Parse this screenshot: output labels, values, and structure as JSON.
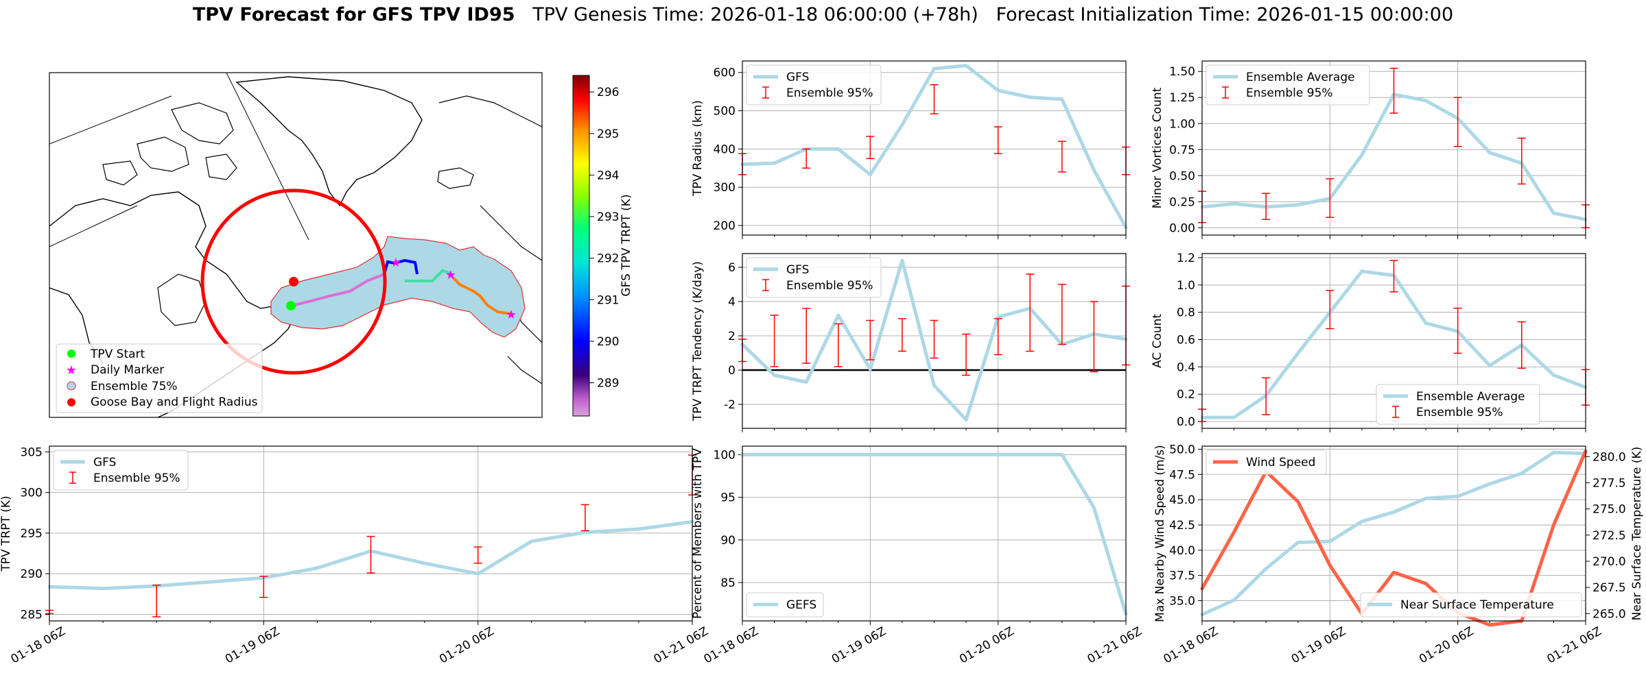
{
  "title": {
    "main": "TPV Forecast for GFS TPV ID95",
    "genesis": "TPV Genesis Time: 2026-01-18 06:00:00 (+78h)",
    "init": "Forecast Initialization Time: 2026-01-15 00:00:00"
  },
  "colors": {
    "model_line": "#add8e6",
    "errorbar": "#ff0000",
    "wind": "#ff6347",
    "temp_axis": "#4169e1"
  },
  "map": {
    "colorbar_label": "GFS TPV TRPT (K)",
    "colorbar_ticks": [
      289,
      290,
      291,
      292,
      293,
      294,
      295,
      296
    ],
    "colorbar_range": [
      288.2,
      296.4
    ],
    "legend": [
      "TPV Start",
      "Daily Marker",
      "Ensemble 75%",
      "Goose Bay and Flight Radius"
    ]
  },
  "x_time_labels": [
    "01-18 06Z",
    "01-19 06Z",
    "01-20 06Z",
    "01-21 06Z"
  ],
  "chart_data": [
    {
      "id": "radius",
      "type": "line",
      "ylabel": "TPV Radius (km)",
      "ylim": [
        175,
        630
      ],
      "yticks": [
        200,
        300,
        400,
        500,
        600
      ],
      "legend": [
        "GFS",
        "Ensemble 95%"
      ],
      "legend_loc": "upper left",
      "x": [
        0,
        6,
        12,
        18,
        24,
        30,
        36,
        42,
        48,
        54,
        60,
        66,
        72
      ],
      "gfs": [
        360,
        363,
        400,
        400,
        333,
        463,
        610,
        618,
        553,
        535,
        530,
        345,
        195
      ],
      "ens_x": [
        0,
        12,
        24,
        36,
        48,
        60,
        72
      ],
      "ens_low": [
        333,
        350,
        375,
        492,
        388,
        340,
        333
      ],
      "ens_high": [
        388,
        400,
        433,
        568,
        458,
        420,
        405
      ]
    },
    {
      "id": "minor_vortices",
      "type": "line",
      "ylabel": "Minor Vortices Count",
      "ylim": [
        -0.07,
        1.6
      ],
      "yticks": [
        0.0,
        0.25,
        0.5,
        0.75,
        1.0,
        1.25,
        1.5
      ],
      "ytick_labels": [
        "0.00",
        "0.25",
        "0.50",
        "0.75",
        "1.00",
        "1.25",
        "1.50"
      ],
      "legend": [
        "Ensemble Average",
        "Ensemble 95%"
      ],
      "legend_loc": "upper left",
      "x": [
        0,
        6,
        12,
        18,
        24,
        30,
        36,
        42,
        48,
        54,
        60,
        66,
        72
      ],
      "avg": [
        0.2,
        0.23,
        0.2,
        0.22,
        0.28,
        0.7,
        1.28,
        1.22,
        1.05,
        0.72,
        0.62,
        0.14,
        0.08
      ],
      "ens_x": [
        0,
        12,
        24,
        36,
        48,
        60,
        72
      ],
      "ens_low": [
        0.05,
        0.08,
        0.1,
        1.1,
        0.78,
        0.42,
        0.0
      ],
      "ens_high": [
        0.35,
        0.33,
        0.47,
        1.53,
        1.25,
        0.86,
        0.22
      ]
    },
    {
      "id": "trpt_tendency",
      "type": "line",
      "ylabel": "TPV TRPT Tendency (K/day)",
      "ylim": [
        -3.4,
        6.8
      ],
      "yticks": [
        -2,
        0,
        2,
        4,
        6
      ],
      "legend": [
        "GFS",
        "Ensemble 95%"
      ],
      "legend_loc": "upper left",
      "zero_line": true,
      "x": [
        0,
        6,
        12,
        18,
        24,
        30,
        36,
        42,
        48,
        54,
        60,
        66,
        72
      ],
      "gfs": [
        1.5,
        -0.3,
        -0.7,
        3.2,
        0.05,
        6.4,
        -0.9,
        -2.9,
        3.1,
        3.6,
        1.5,
        2.1,
        1.8
      ],
      "ens_x": [
        0,
        6,
        12,
        18,
        24,
        30,
        36,
        42,
        48,
        54,
        60,
        66,
        72
      ],
      "ens_low": [
        0.5,
        0.2,
        0.4,
        0.2,
        0.6,
        1.1,
        0.7,
        -0.3,
        0.9,
        1.1,
        1.5,
        -0.1,
        0.3
      ],
      "ens_high": [
        1.8,
        3.2,
        3.6,
        2.7,
        2.9,
        3.0,
        2.9,
        2.1,
        3.0,
        5.6,
        5.0,
        4.0,
        4.9
      ]
    },
    {
      "id": "ac_count",
      "type": "line",
      "ylabel": "AC Count",
      "ylim": [
        -0.05,
        1.23
      ],
      "yticks": [
        0.0,
        0.2,
        0.4,
        0.6,
        0.8,
        1.0,
        1.2
      ],
      "ytick_labels": [
        "0.0",
        "0.2",
        "0.4",
        "0.6",
        "0.8",
        "1.0",
        "1.2"
      ],
      "legend": [
        "Ensemble Average",
        "Ensemble 95%"
      ],
      "legend_loc": "lower center",
      "x": [
        0,
        6,
        12,
        18,
        24,
        30,
        36,
        42,
        48,
        54,
        60,
        66,
        72
      ],
      "avg": [
        0.03,
        0.03,
        0.19,
        0.5,
        0.8,
        1.1,
        1.07,
        0.72,
        0.66,
        0.41,
        0.56,
        0.34,
        0.25
      ],
      "ens_x": [
        0,
        12,
        24,
        36,
        48,
        60,
        72
      ],
      "ens_low": [
        0.0,
        0.05,
        0.68,
        0.95,
        0.5,
        0.39,
        0.12
      ],
      "ens_high": [
        0.09,
        0.32,
        0.96,
        1.18,
        0.83,
        0.73,
        0.38
      ]
    },
    {
      "id": "trpt",
      "type": "line",
      "ylabel": "TPV TRPT (K)",
      "ylim": [
        284.2,
        305.7
      ],
      "yticks": [
        285,
        290,
        295,
        300,
        305
      ],
      "legend": [
        "GFS",
        "Ensemble 95%"
      ],
      "legend_loc": "upper left",
      "x": [
        0,
        6,
        12,
        18,
        24,
        30,
        36,
        42,
        48,
        54,
        60,
        66,
        72
      ],
      "gfs": [
        288.4,
        288.2,
        288.5,
        289.0,
        289.5,
        290.7,
        292.8,
        291.3,
        290.0,
        294.0,
        295.1,
        295.5,
        296.4
      ],
      "ens_x": [
        0,
        12,
        24,
        36,
        48,
        60,
        72
      ],
      "ens_low": [
        285.1,
        284.7,
        287.1,
        290.1,
        291.3,
        295.3,
        299.7
      ],
      "ens_high": [
        285.5,
        288.6,
        289.7,
        294.6,
        293.3,
        298.5,
        304.6
      ]
    },
    {
      "id": "percent_members",
      "type": "line",
      "ylabel": "Percent of Members with TPV",
      "ylim": [
        80.5,
        101
      ],
      "yticks": [
        85,
        90,
        95,
        100
      ],
      "legend": [
        "GEFS"
      ],
      "legend_loc": "lower left",
      "x": [
        0,
        6,
        12,
        18,
        24,
        30,
        36,
        42,
        48,
        54,
        60,
        66,
        72
      ],
      "gefs": [
        100,
        100,
        100,
        100,
        100,
        100,
        100,
        100,
        100,
        100,
        100,
        93.8,
        81.3
      ]
    },
    {
      "id": "wind_temp",
      "type": "line",
      "ylabel": "Max Nearby Wind Speed (m/s)",
      "ylabel_right": "Near Surface Temperature (K)",
      "ylim": [
        33.0,
        50.3
      ],
      "yticks": [
        35.0,
        37.5,
        40.0,
        42.5,
        45.0,
        47.5,
        50.0
      ],
      "ytick_labels": [
        "35.0",
        "37.5",
        "40.0",
        "42.5",
        "45.0",
        "47.5",
        "50.0"
      ],
      "ylim_right": [
        264.3,
        281.0
      ],
      "yticks_right": [
        265.0,
        267.5,
        270.0,
        272.5,
        275.0,
        277.5,
        280.0
      ],
      "ytick_labels_right": [
        "265.0",
        "267.5",
        "270.0",
        "272.5",
        "275.0",
        "277.5",
        "280.0"
      ],
      "legend": [
        "Wind Speed"
      ],
      "legend_right": [
        "Near Surface Temperature"
      ],
      "x": [
        0,
        6,
        12,
        18,
        24,
        30,
        36,
        42,
        48,
        54,
        60,
        66,
        72
      ],
      "wind": [
        36.2,
        41.8,
        47.8,
        44.8,
        38.5,
        33.7,
        37.8,
        36.7,
        33.8,
        32.6,
        33.0,
        42.5,
        49.8
      ],
      "temp": [
        264.9,
        266.3,
        269.3,
        271.8,
        271.9,
        273.8,
        274.7,
        276.0,
        276.2,
        277.4,
        278.4,
        280.4,
        280.3
      ]
    }
  ]
}
